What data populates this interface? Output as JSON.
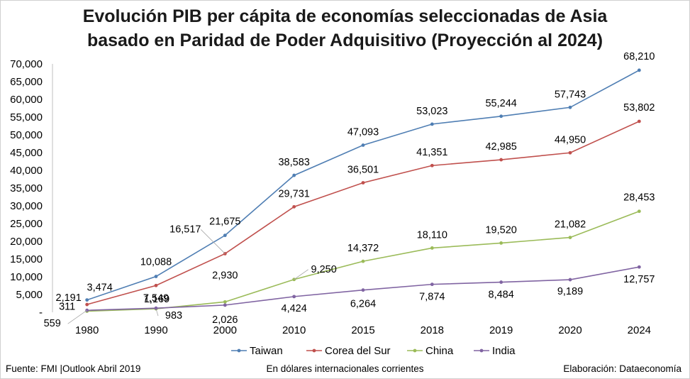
{
  "title_line1": "Evolución PIB per cápita de economías seleccionadas de Asia",
  "title_line2": "basado en Paridad de Poder Adquisitivo (Proyección al 2024)",
  "footer": {
    "source": "Fuente: FMI |Outlook Abril 2019",
    "units": "En dólares internacionales corrientes",
    "credit": "Elaboración: Dataeconomía"
  },
  "chart_data": {
    "type": "line",
    "title": "Evolución PIB per cápita de economías seleccionadas de Asia basado en Paridad de Poder Adquisitivo (Proyección al 2024)",
    "xlabel": "",
    "ylabel": "",
    "categories": [
      "1980",
      "1990",
      "2000",
      "2010",
      "2015",
      "2018",
      "2019",
      "2020",
      "2024"
    ],
    "y_tick_labels": [
      "-",
      "5,000",
      "10,000",
      "15,000",
      "20,000",
      "25,000",
      "30,000",
      "35,000",
      "40,000",
      "45,000",
      "50,000",
      "55,000",
      "60,000",
      "65,000",
      "70,000"
    ],
    "ylim": [
      0,
      70000
    ],
    "grid": false,
    "legend_position": "bottom",
    "series": [
      {
        "name": "Taiwan",
        "color": "#4f7eb3",
        "values": [
          3474,
          10088,
          21675,
          38583,
          47093,
          53023,
          55244,
          57743,
          68210
        ],
        "labels": [
          "3,474",
          "10,088",
          "21,675",
          "38,583",
          "47,093",
          "53,023",
          "55,244",
          "57,743",
          "68,210"
        ]
      },
      {
        "name": "Corea del Sur",
        "color": "#c0504d",
        "values": [
          2191,
          7549,
          16517,
          29731,
          36501,
          41351,
          42985,
          44950,
          53802
        ],
        "labels": [
          "2,191",
          "7,549",
          "16,517",
          "29,731",
          "36,501",
          "41,351",
          "42,985",
          "44,950",
          "53,802"
        ]
      },
      {
        "name": "China",
        "color": "#9bbb59",
        "values": [
          311,
          983,
          2930,
          9250,
          14372,
          18110,
          19520,
          21082,
          28453
        ],
        "labels": [
          "311",
          "983",
          "2,930",
          "9,250",
          "14,372",
          "18,110",
          "19,520",
          "21,082",
          "28,453"
        ]
      },
      {
        "name": "India",
        "color": "#8064a2",
        "values": [
          559,
          1169,
          2026,
          4424,
          6264,
          7874,
          8484,
          9189,
          12757
        ],
        "labels": [
          "559",
          "1,169",
          "2,026",
          "4,424",
          "6,264",
          "7,874",
          "8,484",
          "9,189",
          "12,757"
        ]
      }
    ]
  }
}
